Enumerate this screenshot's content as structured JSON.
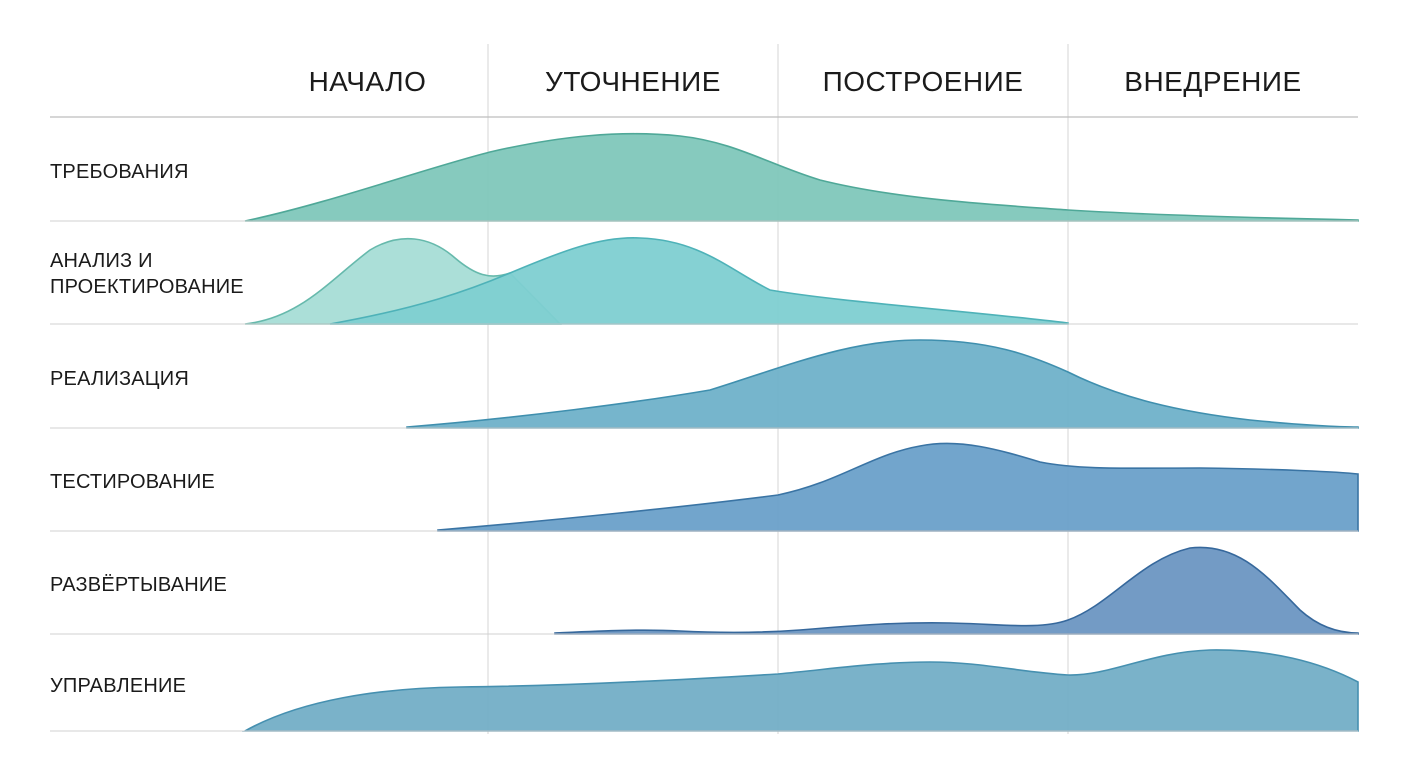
{
  "phases": [
    {
      "label": "НАЧАЛО"
    },
    {
      "label": "УТОЧНЕНИЕ"
    },
    {
      "label": "ПОСТРОЕНИЕ"
    },
    {
      "label": "ВНЕДРЕНИЕ"
    }
  ],
  "disciplines": [
    {
      "label": "ТРЕБОВАНИЯ",
      "color": "#7fc7bb"
    },
    {
      "label": "АНАЛИЗ И\nПРОЕКТИРОВАНИЕ",
      "color": "#7ecfd1"
    },
    {
      "label": "РЕАЛИЗАЦИЯ",
      "color": "#6fb1c9"
    },
    {
      "label": "ТЕСТИРОВАНИЕ",
      "color": "#6aa0c9"
    },
    {
      "label": "РАЗВЁРТЫВАНИЕ",
      "color": "#6b96c2"
    },
    {
      "label": "УПРАВЛЕНИЕ",
      "color": "#73aec6"
    }
  ],
  "colors": {
    "grid_line": "#cfcfcf",
    "analysis_early_fill": "#a6ddd6"
  }
}
